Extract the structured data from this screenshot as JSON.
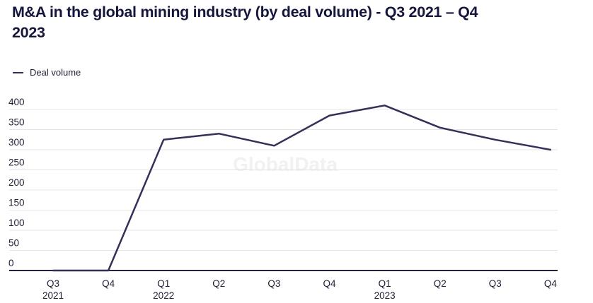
{
  "header": {
    "title": "M&A in the global mining industry (by deal volume) - Q3 2021 – Q4 2023",
    "title_line1": "M&A in the global mining industry (by deal volume) - Q3 2021 – Q4",
    "title_line2": "2023"
  },
  "legend": {
    "label": "Deal volume"
  },
  "watermark": "GlobalData",
  "colors": {
    "line": "#353057",
    "title": "#15153d",
    "tick_label": "#1f1f38",
    "gridline": "#e4e4e6",
    "axis": "#23233b",
    "watermark": "#f1f0f3"
  },
  "chart_data": {
    "type": "line",
    "title": "M&A in the global mining industry (by deal volume) - Q3 2021 – Q4 2023",
    "categories": [
      "Q3 2021",
      "Q4 2021",
      "Q1 2022",
      "Q2 2022",
      "Q3 2022",
      "Q4 2022",
      "Q1 2023",
      "Q2 2023",
      "Q3 2023",
      "Q4 2023"
    ],
    "x_tick_labels": [
      {
        "q": "Q3",
        "year": "2021"
      },
      {
        "q": "Q4",
        "year": ""
      },
      {
        "q": "Q1",
        "year": "2022"
      },
      {
        "q": "Q2",
        "year": ""
      },
      {
        "q": "Q3",
        "year": ""
      },
      {
        "q": "Q4",
        "year": ""
      },
      {
        "q": "Q1",
        "year": "2023"
      },
      {
        "q": "Q2",
        "year": ""
      },
      {
        "q": "Q3",
        "year": ""
      },
      {
        "q": "Q4",
        "year": ""
      }
    ],
    "series": [
      {
        "name": "Deal volume",
        "values": [
          0,
          0,
          325,
          340,
          310,
          385,
          410,
          355,
          325,
          300
        ]
      }
    ],
    "yticks": [
      0,
      50,
      100,
      150,
      200,
      250,
      300,
      350,
      400
    ],
    "ylim": [
      0,
      400
    ],
    "xlabel": "",
    "ylabel": "",
    "grid": "horizontal",
    "legend_position": "top-left"
  }
}
